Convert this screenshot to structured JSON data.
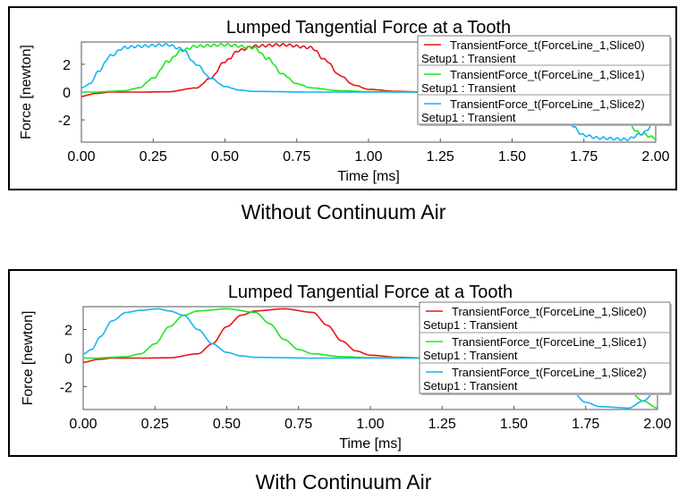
{
  "captions": {
    "top": "Without Continuum Air",
    "bottom": "With Continuum Air"
  },
  "colors": {
    "slice0": "#e8151b",
    "slice1": "#1ee81e",
    "slice2": "#16b4f0",
    "frame": "#000000"
  },
  "chart_data": [
    {
      "type": "line",
      "title": "Lumped Tangential  Force at a Tooth",
      "xlabel": "Time [ms]",
      "ylabel": "Force [newton]",
      "xlim": [
        0,
        2.0
      ],
      "ylim": [
        -3.6,
        3.6
      ],
      "xticks": [
        "0.00",
        "0.25",
        "0.50",
        "0.75",
        "1.00",
        "1.25",
        "1.50",
        "1.75",
        "2.00"
      ],
      "yticks": [
        "2",
        "0",
        "-2"
      ],
      "ripple": true,
      "legend_position": "top-right",
      "series": [
        {
          "name": "TransientForce_t(ForceLine_1,Slice0)",
          "sub": "Setup1 : Transient",
          "color_key": "slice0",
          "x": [
            0,
            0.05,
            0.1,
            0.2,
            0.3,
            0.4,
            0.45,
            0.5,
            0.55,
            0.6,
            0.7,
            0.8,
            0.85,
            0.9,
            0.95,
            1.0,
            1.1,
            1.2,
            1.4,
            1.6,
            1.7,
            1.8,
            1.9,
            2.0
          ],
          "y": [
            -0.3,
            -0.1,
            0,
            0,
            0.02,
            0.3,
            1.0,
            2.2,
            3.0,
            3.3,
            3.4,
            3.2,
            2.3,
            1.2,
            0.5,
            0.2,
            0.05,
            0,
            0,
            0,
            0,
            0,
            0,
            0
          ]
        },
        {
          "name": "TransientForce_t(ForceLine_1,Slice1)",
          "sub": "Setup1 : Transient",
          "color_key": "slice1",
          "x": [
            0,
            0.05,
            0.1,
            0.15,
            0.2,
            0.25,
            0.3,
            0.35,
            0.4,
            0.5,
            0.6,
            0.65,
            0.7,
            0.75,
            0.8,
            0.9,
            1.0,
            1.2,
            1.4,
            1.6,
            1.7,
            1.8,
            1.85,
            1.9,
            1.95,
            2.0
          ],
          "y": [
            0,
            0,
            0.05,
            0.1,
            0.3,
            1.0,
            2.2,
            3.0,
            3.3,
            3.4,
            3.2,
            2.4,
            1.3,
            0.6,
            0.3,
            0.1,
            0.03,
            0,
            0,
            0,
            -0.1,
            -0.5,
            -1.3,
            -2.3,
            -3.0,
            -3.3
          ]
        },
        {
          "name": "TransientForce_t(ForceLine_1,Slice2)",
          "sub": "Setup1 : Transient",
          "color_key": "slice2",
          "x": [
            0,
            0.03,
            0.06,
            0.1,
            0.15,
            0.2,
            0.3,
            0.35,
            0.4,
            0.45,
            0.5,
            0.55,
            0.6,
            0.8,
            1.0,
            1.3,
            1.5,
            1.6,
            1.65,
            1.7,
            1.75,
            1.8,
            1.9,
            1.95,
            2.0
          ],
          "y": [
            0.3,
            0.6,
            1.5,
            2.6,
            3.2,
            3.3,
            3.4,
            3.1,
            2.0,
            1.0,
            0.4,
            0.15,
            0.05,
            0,
            0,
            0,
            -0.1,
            -0.5,
            -1.3,
            -2.3,
            -3.1,
            -3.3,
            -3.4,
            -3.0,
            -2.2
          ]
        }
      ]
    },
    {
      "type": "line",
      "title": "Lumped Tangential  Force at a Tooth",
      "xlabel": "Time [ms]",
      "ylabel": "Force [newton]",
      "xlim": [
        0,
        2.0
      ],
      "ylim": [
        -3.6,
        3.6
      ],
      "xticks": [
        "0.00",
        "0.25",
        "0.50",
        "0.75",
        "1.00",
        "1.25",
        "1.50",
        "1.75",
        "2.00"
      ],
      "yticks": [
        "2",
        "0",
        "-2"
      ],
      "ripple": false,
      "legend_position": "top-right",
      "series": [
        {
          "name": "TransientForce_t(ForceLine_1,Slice0)",
          "sub": "Setup1 : Transient",
          "color_key": "slice0",
          "x": [
            0,
            0.05,
            0.1,
            0.2,
            0.3,
            0.4,
            0.45,
            0.5,
            0.55,
            0.6,
            0.7,
            0.8,
            0.85,
            0.9,
            0.95,
            1.0,
            1.1,
            1.2,
            1.4,
            1.6,
            1.7,
            1.8,
            1.9,
            2.0
          ],
          "y": [
            -0.3,
            -0.1,
            0,
            0,
            0.02,
            0.3,
            1.0,
            2.2,
            3.0,
            3.3,
            3.45,
            3.2,
            2.3,
            1.2,
            0.5,
            0.2,
            0.05,
            0,
            0,
            0,
            0,
            0,
            0,
            0
          ]
        },
        {
          "name": "TransientForce_t(ForceLine_1,Slice1)",
          "sub": "Setup1 : Transient",
          "color_key": "slice1",
          "x": [
            0,
            0.05,
            0.1,
            0.15,
            0.2,
            0.25,
            0.3,
            0.35,
            0.4,
            0.5,
            0.6,
            0.65,
            0.7,
            0.75,
            0.8,
            0.9,
            1.0,
            1.2,
            1.4,
            1.6,
            1.7,
            1.8,
            1.85,
            1.9,
            1.95,
            2.0
          ],
          "y": [
            0,
            0,
            0.05,
            0.1,
            0.3,
            1.0,
            2.2,
            3.0,
            3.3,
            3.45,
            3.2,
            2.4,
            1.3,
            0.6,
            0.3,
            0.1,
            0.03,
            0,
            0,
            0,
            -0.1,
            -0.5,
            -1.3,
            -2.3,
            -3.0,
            -3.5
          ]
        },
        {
          "name": "TransientForce_t(ForceLine_1,Slice2)",
          "sub": "Setup1 : Transient",
          "color_key": "slice2",
          "x": [
            0,
            0.03,
            0.06,
            0.1,
            0.15,
            0.2,
            0.26,
            0.3,
            0.35,
            0.4,
            0.45,
            0.5,
            0.55,
            0.6,
            0.8,
            1.0,
            1.3,
            1.5,
            1.6,
            1.65,
            1.7,
            1.75,
            1.8,
            1.9,
            1.95,
            2.0
          ],
          "y": [
            0.3,
            0.6,
            1.5,
            2.6,
            3.2,
            3.35,
            3.45,
            3.3,
            3.0,
            2.0,
            1.0,
            0.4,
            0.15,
            0.05,
            0,
            0,
            0,
            -0.1,
            -0.5,
            -1.3,
            -2.3,
            -3.1,
            -3.4,
            -3.5,
            -3.0,
            -2.2
          ]
        }
      ]
    }
  ]
}
